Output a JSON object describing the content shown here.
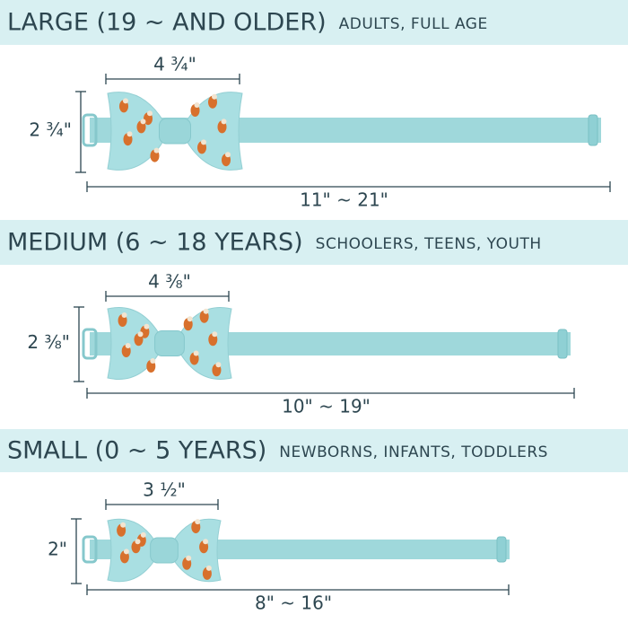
{
  "sections": [
    {
      "title": "LARGE (19 ~ AND OLDER)",
      "subtitle": "ADULTS, FULL AGE",
      "width": "4 ¾\"",
      "height": "2 ¾\"",
      "length": "11\" ~ 21\""
    },
    {
      "title": "MEDIUM (6 ~ 18 YEARS)",
      "subtitle": "SCHOOLERS, TEENS, YOUTH",
      "width": "4 ⅜\"",
      "height": "2 ⅜\"",
      "length": "10\" ~ 19\""
    },
    {
      "title": "SMALL (0 ~ 5 YEARS)",
      "subtitle": "NEWBORNS, INFANTS, TODDLERS",
      "width": "3 ½\"",
      "height": "2\"",
      "length": "8\" ~ 16\""
    }
  ]
}
